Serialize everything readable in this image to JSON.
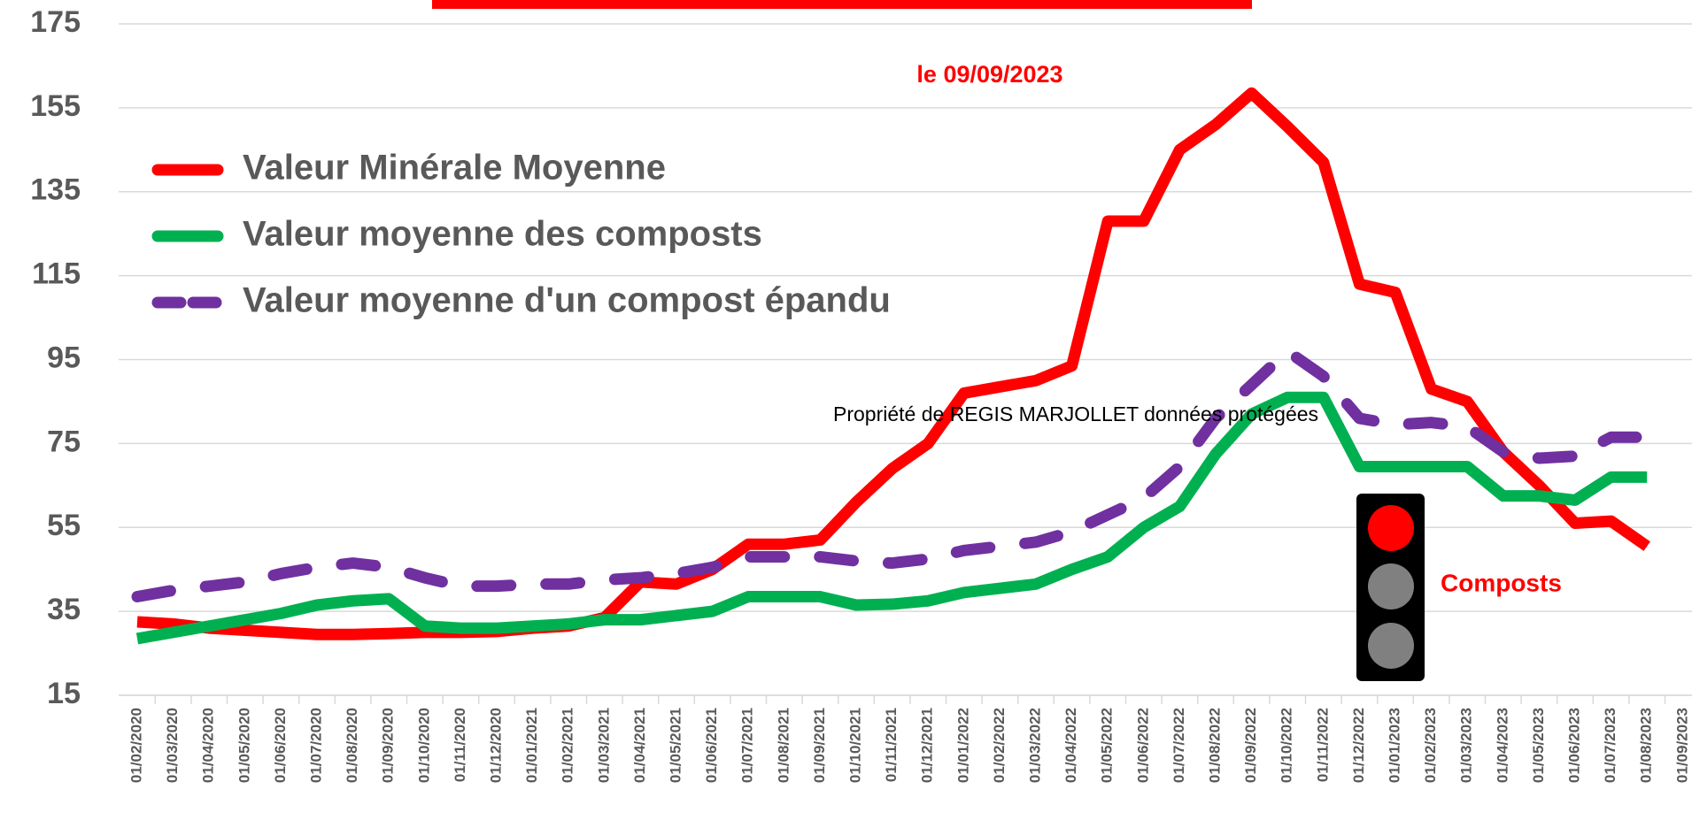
{
  "chart_data": {
    "type": "line",
    "annotation": "le  09/09/2023",
    "watermark": "Propriété de REGIS MARJOLLET données protégées",
    "signal_label": "Composts",
    "categories": [
      "01/02/2020",
      "01/03/2020",
      "01/04/2020",
      "01/05/2020",
      "01/06/2020",
      "01/07/2020",
      "01/08/2020",
      "01/09/2020",
      "01/10/2020",
      "01/11/2020",
      "01/12/2020",
      "01/01/2021",
      "01/02/2021",
      "01/03/2021",
      "01/04/2021",
      "01/05/2021",
      "01/06/2021",
      "01/07/2021",
      "01/08/2021",
      "01/09/2021",
      "01/10/2021",
      "01/11/2021",
      "01/12/2021",
      "01/01/2022",
      "01/02/2022",
      "01/03/2022",
      "01/04/2022",
      "01/05/2022",
      "01/06/2022",
      "01/07/2022",
      "01/08/2022",
      "01/09/2022",
      "01/10/2022",
      "01/11/2022",
      "01/12/2022",
      "01/01/2023",
      "01/02/2023",
      "01/03/2023",
      "01/04/2023",
      "01/05/2023",
      "01/06/2023",
      "01/07/2023",
      "01/08/2023",
      "01/09/2023"
    ],
    "series": [
      {
        "name": "Valeur Minérale Moyenne",
        "color": "#ff0000",
        "dashed": false,
        "values": [
          32.5,
          32,
          31,
          30.5,
          30,
          29.5,
          29.5,
          29.7,
          30,
          30,
          30.2,
          31,
          31.5,
          33.5,
          42,
          41.5,
          45,
          51,
          51,
          52,
          61,
          69,
          75,
          87,
          88.5,
          90,
          93.5,
          128,
          128,
          145,
          151,
          158.5,
          150.5,
          142,
          113,
          111,
          88,
          85,
          73,
          65,
          56,
          56.5,
          50.5,
          null
        ]
      },
      {
        "name": "Valeur moyenne des composts",
        "color": "#00b050",
        "dashed": false,
        "values": [
          28.5,
          30,
          31.5,
          33,
          34.5,
          36.5,
          37.5,
          38,
          31.5,
          31,
          31,
          31.5,
          32,
          33,
          33,
          34,
          35,
          38.5,
          38.5,
          38.5,
          36.5,
          36.7,
          37.5,
          39.5,
          40.5,
          41.5,
          45,
          48,
          55,
          60,
          72.5,
          82,
          86,
          86,
          69.5,
          69.5,
          69.5,
          69.5,
          62.5,
          62.5,
          61.5,
          67,
          67,
          null
        ]
      },
      {
        "name": "Valeur moyenne d'un compost épandu",
        "color": "#7030a0",
        "dashed": true,
        "values": [
          38.5,
          40,
          41,
          42,
          44,
          45.5,
          46.5,
          45.5,
          43,
          41,
          41,
          41.5,
          41.5,
          42.5,
          43,
          44,
          45.5,
          48,
          48,
          48,
          47,
          46.5,
          47.5,
          49.5,
          50.5,
          51.5,
          54,
          58,
          62,
          69.5,
          81,
          89,
          97,
          91,
          81,
          79.5,
          80,
          79,
          73,
          71.5,
          72,
          76.5,
          76.5,
          null
        ]
      }
    ],
    "ylim": [
      15,
      175
    ],
    "yticks": [
      15,
      35,
      55,
      75,
      95,
      115,
      135,
      155,
      175
    ],
    "grid": true,
    "legend": "upper left"
  }
}
